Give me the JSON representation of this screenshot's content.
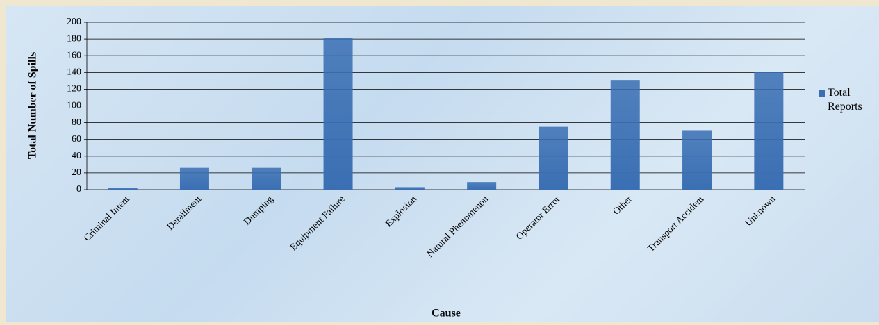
{
  "chart_data": {
    "type": "bar",
    "x_label": "Cause",
    "y_label": "Total Number of Spills",
    "categories": [
      "Criminal Intent",
      "Derailment",
      "Dumping",
      "Equipment Failure",
      "Explosion",
      "Natural Phenomenon",
      "Operator Error",
      "Other",
      "Transport Accident",
      "Unknown"
    ],
    "series": [
      {
        "name": "Total Reports",
        "color": "#3a6fb3",
        "values": [
          2,
          26,
          26,
          181,
          3,
          9,
          75,
          131,
          71,
          141
        ]
      }
    ],
    "ylim": [
      0,
      200
    ],
    "yticks": [
      0,
      20,
      40,
      60,
      80,
      100,
      120,
      140,
      160,
      180,
      200
    ],
    "grid": true,
    "legend": "right"
  }
}
